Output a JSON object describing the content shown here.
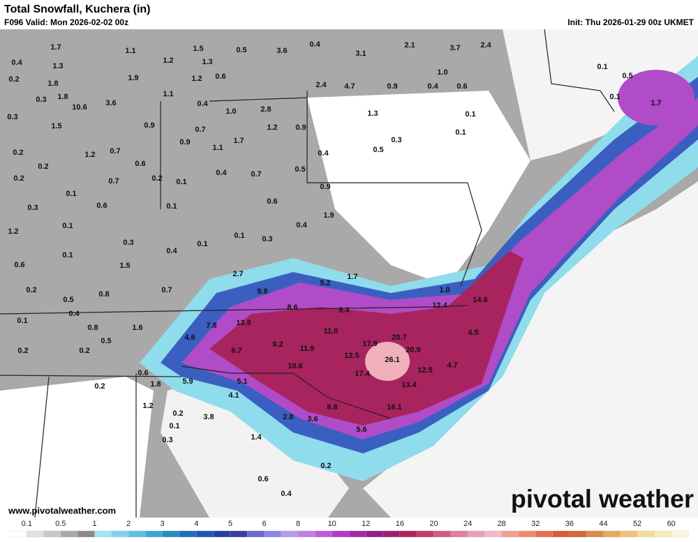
{
  "header": {
    "title": "Total Snowfall, Kuchera (in)",
    "valid": "F096 Valid: Mon 2026-02-02 00z",
    "init": "Init: Thu 2026-01-29 00z UKMET"
  },
  "map": {
    "labels": [
      "1.7",
      "1.1",
      "1.2",
      "1.5",
      "1.3",
      "0.5",
      "3.6",
      "0.4",
      "3.1",
      "2.1",
      "3.7",
      "2.4",
      "0.4",
      "1.3",
      "0.2",
      "1.8",
      "1.9",
      "1.2",
      "0.6",
      "2.4",
      "4.7",
      "0.9",
      "0.4",
      "0.6",
      "1.0",
      "0.1",
      "0.5",
      "0.3",
      "1.8",
      "10.6",
      "3.6",
      "1.1",
      "0.4",
      "1.0",
      "2.8",
      "0.1",
      "1.7",
      "0.3",
      "1.5",
      "0.9",
      "0.7",
      "1.2",
      "0.9",
      "1.3",
      "0.1",
      "0.1",
      "0.9",
      "1.1",
      "1.7",
      "0.3",
      "0.5",
      "0.2",
      "1.2",
      "0.7",
      "0.4",
      "0.2",
      "0.6",
      "0.4",
      "0.7",
      "0.5",
      "0.2",
      "0.7",
      "0.2",
      "0.1",
      "0.9",
      "0.1",
      "0.3",
      "0.6",
      "0.1",
      "0.6",
      "1.9",
      "1.2",
      "0.1",
      "0.4",
      "0.1",
      "0.3",
      "0.3",
      "0.1",
      "0.4",
      "0.6",
      "0.1",
      "1.5",
      "2.7",
      "1.7",
      "0.2",
      "0.8",
      "0.7",
      "9.8",
      "5.2",
      "1.0",
      "0.5",
      "14.6",
      "12.4",
      "8.6",
      "8.4",
      "0.4",
      "0.1",
      "0.8",
      "1.6",
      "7.8",
      "13.9",
      "11.0",
      "4.5",
      "0.5",
      "4.6",
      "9.2",
      "17.9",
      "20.7",
      "0.2",
      "0.2",
      "6.7",
      "11.9",
      "20.9",
      "12.5",
      "26.1",
      "4.7",
      "10.6",
      "12.5",
      "0.6",
      "17.4",
      "0.2",
      "1.8",
      "5.9",
      "5.1",
      "13.4",
      "4.1",
      "16.1",
      "1.2",
      "0.2",
      "8.8",
      "2.8",
      "3.6",
      "3.8",
      "0.1",
      "5.6",
      "0.3",
      "1.4",
      "0.2",
      "0.6",
      "0.4"
    ]
  },
  "legend": {
    "ticks": [
      "0.1",
      "0.5",
      "1",
      "2",
      "3",
      "4",
      "5",
      "6",
      "8",
      "10",
      "12",
      "16",
      "20",
      "24",
      "28",
      "32",
      "36",
      "44",
      "52",
      "60"
    ],
    "colors": [
      "#ffffff",
      "#e0e0e0",
      "#c8c8c8",
      "#a8a8a8",
      "#8a8a8a",
      "#9ee6f2",
      "#7fd4ec",
      "#5ec0e0",
      "#3fa6d2",
      "#2a8bc6",
      "#1f6fba",
      "#1e55ad",
      "#24409f",
      "#3a3d9a",
      "#6a6ad0",
      "#8f86e0",
      "#b59bea",
      "#c47fe0",
      "#c05ad6",
      "#b43bc4",
      "#a12aa8",
      "#8e1f8c",
      "#9e1f6e",
      "#b0245c",
      "#c23a6c",
      "#d45a86",
      "#e07fa0",
      "#eba0b8",
      "#f2b8c4",
      "#f0a090",
      "#ea8a70",
      "#e27050",
      "#d85a3a",
      "#d06a3a",
      "#da8a4a",
      "#e4aa60",
      "#eec478",
      "#f4dc98",
      "#f8ecb8",
      "#fbf6dc"
    ]
  },
  "footer": {
    "url": "www.pivotalweather.com",
    "watermark": "pivotal weather"
  }
}
